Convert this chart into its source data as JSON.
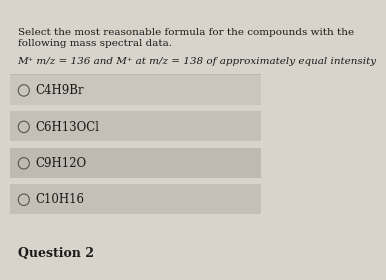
{
  "background_color": "#d8d4cc",
  "title_line1": "Select the most reasonable formula for the compounds with the following mass spectral data.",
  "title_line2": "M⁺ m/z = 136 and M⁺ at m/z = 138 of approximately equal intensity",
  "options": [
    "C4H9Br",
    "C6H13OCl",
    "C9H12O",
    "C10H16"
  ],
  "footer": "Question 2",
  "text_color": "#1a1a1a",
  "option_bg_colors": [
    "#cac6be",
    "#c4c0b8",
    "#bebab2",
    "#c4c0b8"
  ],
  "title_fontsize": 7.5,
  "option_fontsize": 8.5,
  "footer_fontsize": 9
}
